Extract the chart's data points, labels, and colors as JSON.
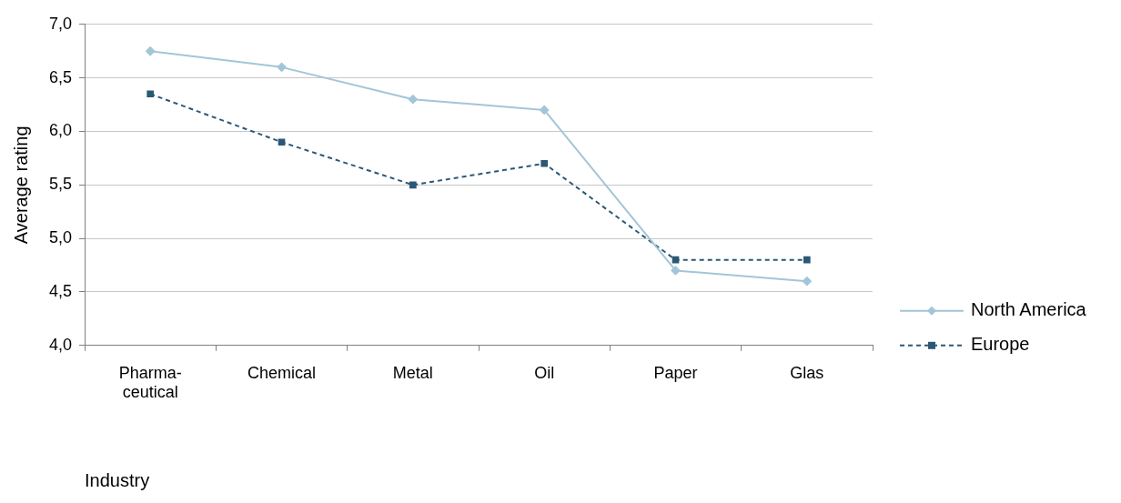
{
  "chart_data": {
    "type": "line",
    "xlabel": "Industry",
    "ylabel": "Average rating",
    "categories": [
      "Pharma-\nceutical",
      "Chemical",
      "Metal",
      "Oil",
      "Paper",
      "Glas"
    ],
    "series": [
      {
        "name": "North America",
        "color": "#a3c5d8",
        "marker": "diamond",
        "line_style": "solid",
        "values": [
          6.75,
          6.6,
          6.3,
          6.2,
          4.7,
          4.6
        ]
      },
      {
        "name": "Europe",
        "color": "#2b5876",
        "marker": "square",
        "line_style": "dashed",
        "values": [
          6.35,
          5.9,
          5.5,
          5.7,
          4.8,
          4.8
        ]
      }
    ],
    "ylim": [
      4,
      7
    ],
    "yticks": [
      {
        "value": 4,
        "label": "4,0"
      },
      {
        "value": 4.5,
        "label": "4,5"
      },
      {
        "value": 5,
        "label": "5,0"
      },
      {
        "value": 5.5,
        "label": "5,5"
      },
      {
        "value": 6,
        "label": "6,0"
      },
      {
        "value": 6.5,
        "label": "6,5"
      },
      {
        "value": 7,
        "label": "7,0"
      }
    ],
    "grid": "y",
    "legend": "right"
  }
}
